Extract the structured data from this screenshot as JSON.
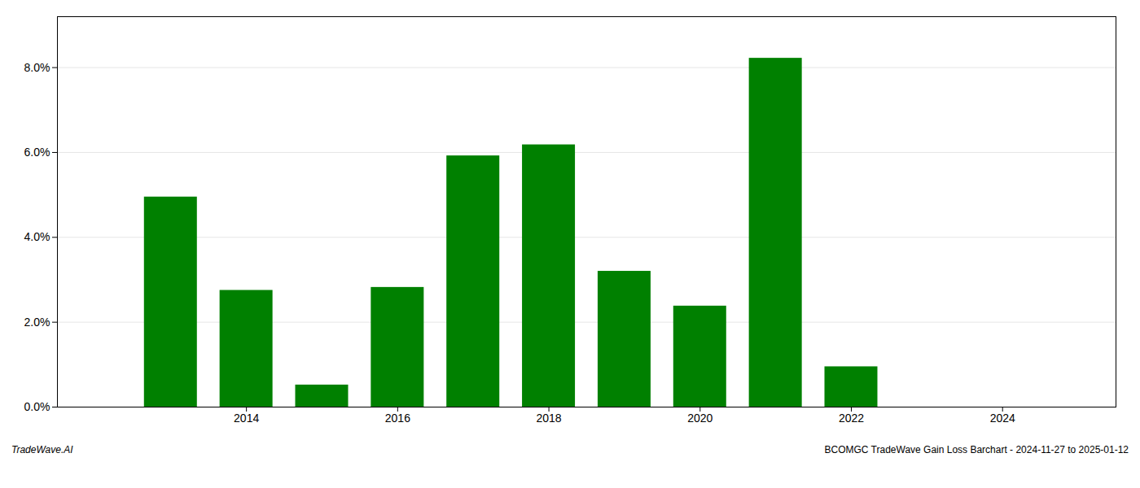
{
  "chart_data": {
    "type": "bar",
    "x": [
      2013,
      2014,
      2015,
      2016,
      2017,
      2018,
      2019,
      2020,
      2021,
      2022,
      2023
    ],
    "values": [
      0.0495,
      0.0275,
      0.0052,
      0.0282,
      0.0592,
      0.0618,
      0.032,
      0.0238,
      0.0822,
      0.0095,
      0.0
    ],
    "color": "#008000",
    "xlim": [
      2011.5,
      2025.5
    ],
    "xticks": [
      2014,
      2016,
      2018,
      2020,
      2022,
      2024
    ],
    "ylim": [
      0,
      0.092
    ],
    "yticks": [
      {
        "value": 0.0,
        "label": "0.0%"
      },
      {
        "value": 0.02,
        "label": "2.0%"
      },
      {
        "value": 0.04,
        "label": "4.0%"
      },
      {
        "value": 0.06,
        "label": "6.0%"
      },
      {
        "value": 0.08,
        "label": "8.0%"
      }
    ],
    "grid": true,
    "annotations": [
      "TradeWave.AI",
      "BCOMGC TradeWave Gain Loss Barchart - 2024-11-27 to 2025-01-12"
    ]
  }
}
